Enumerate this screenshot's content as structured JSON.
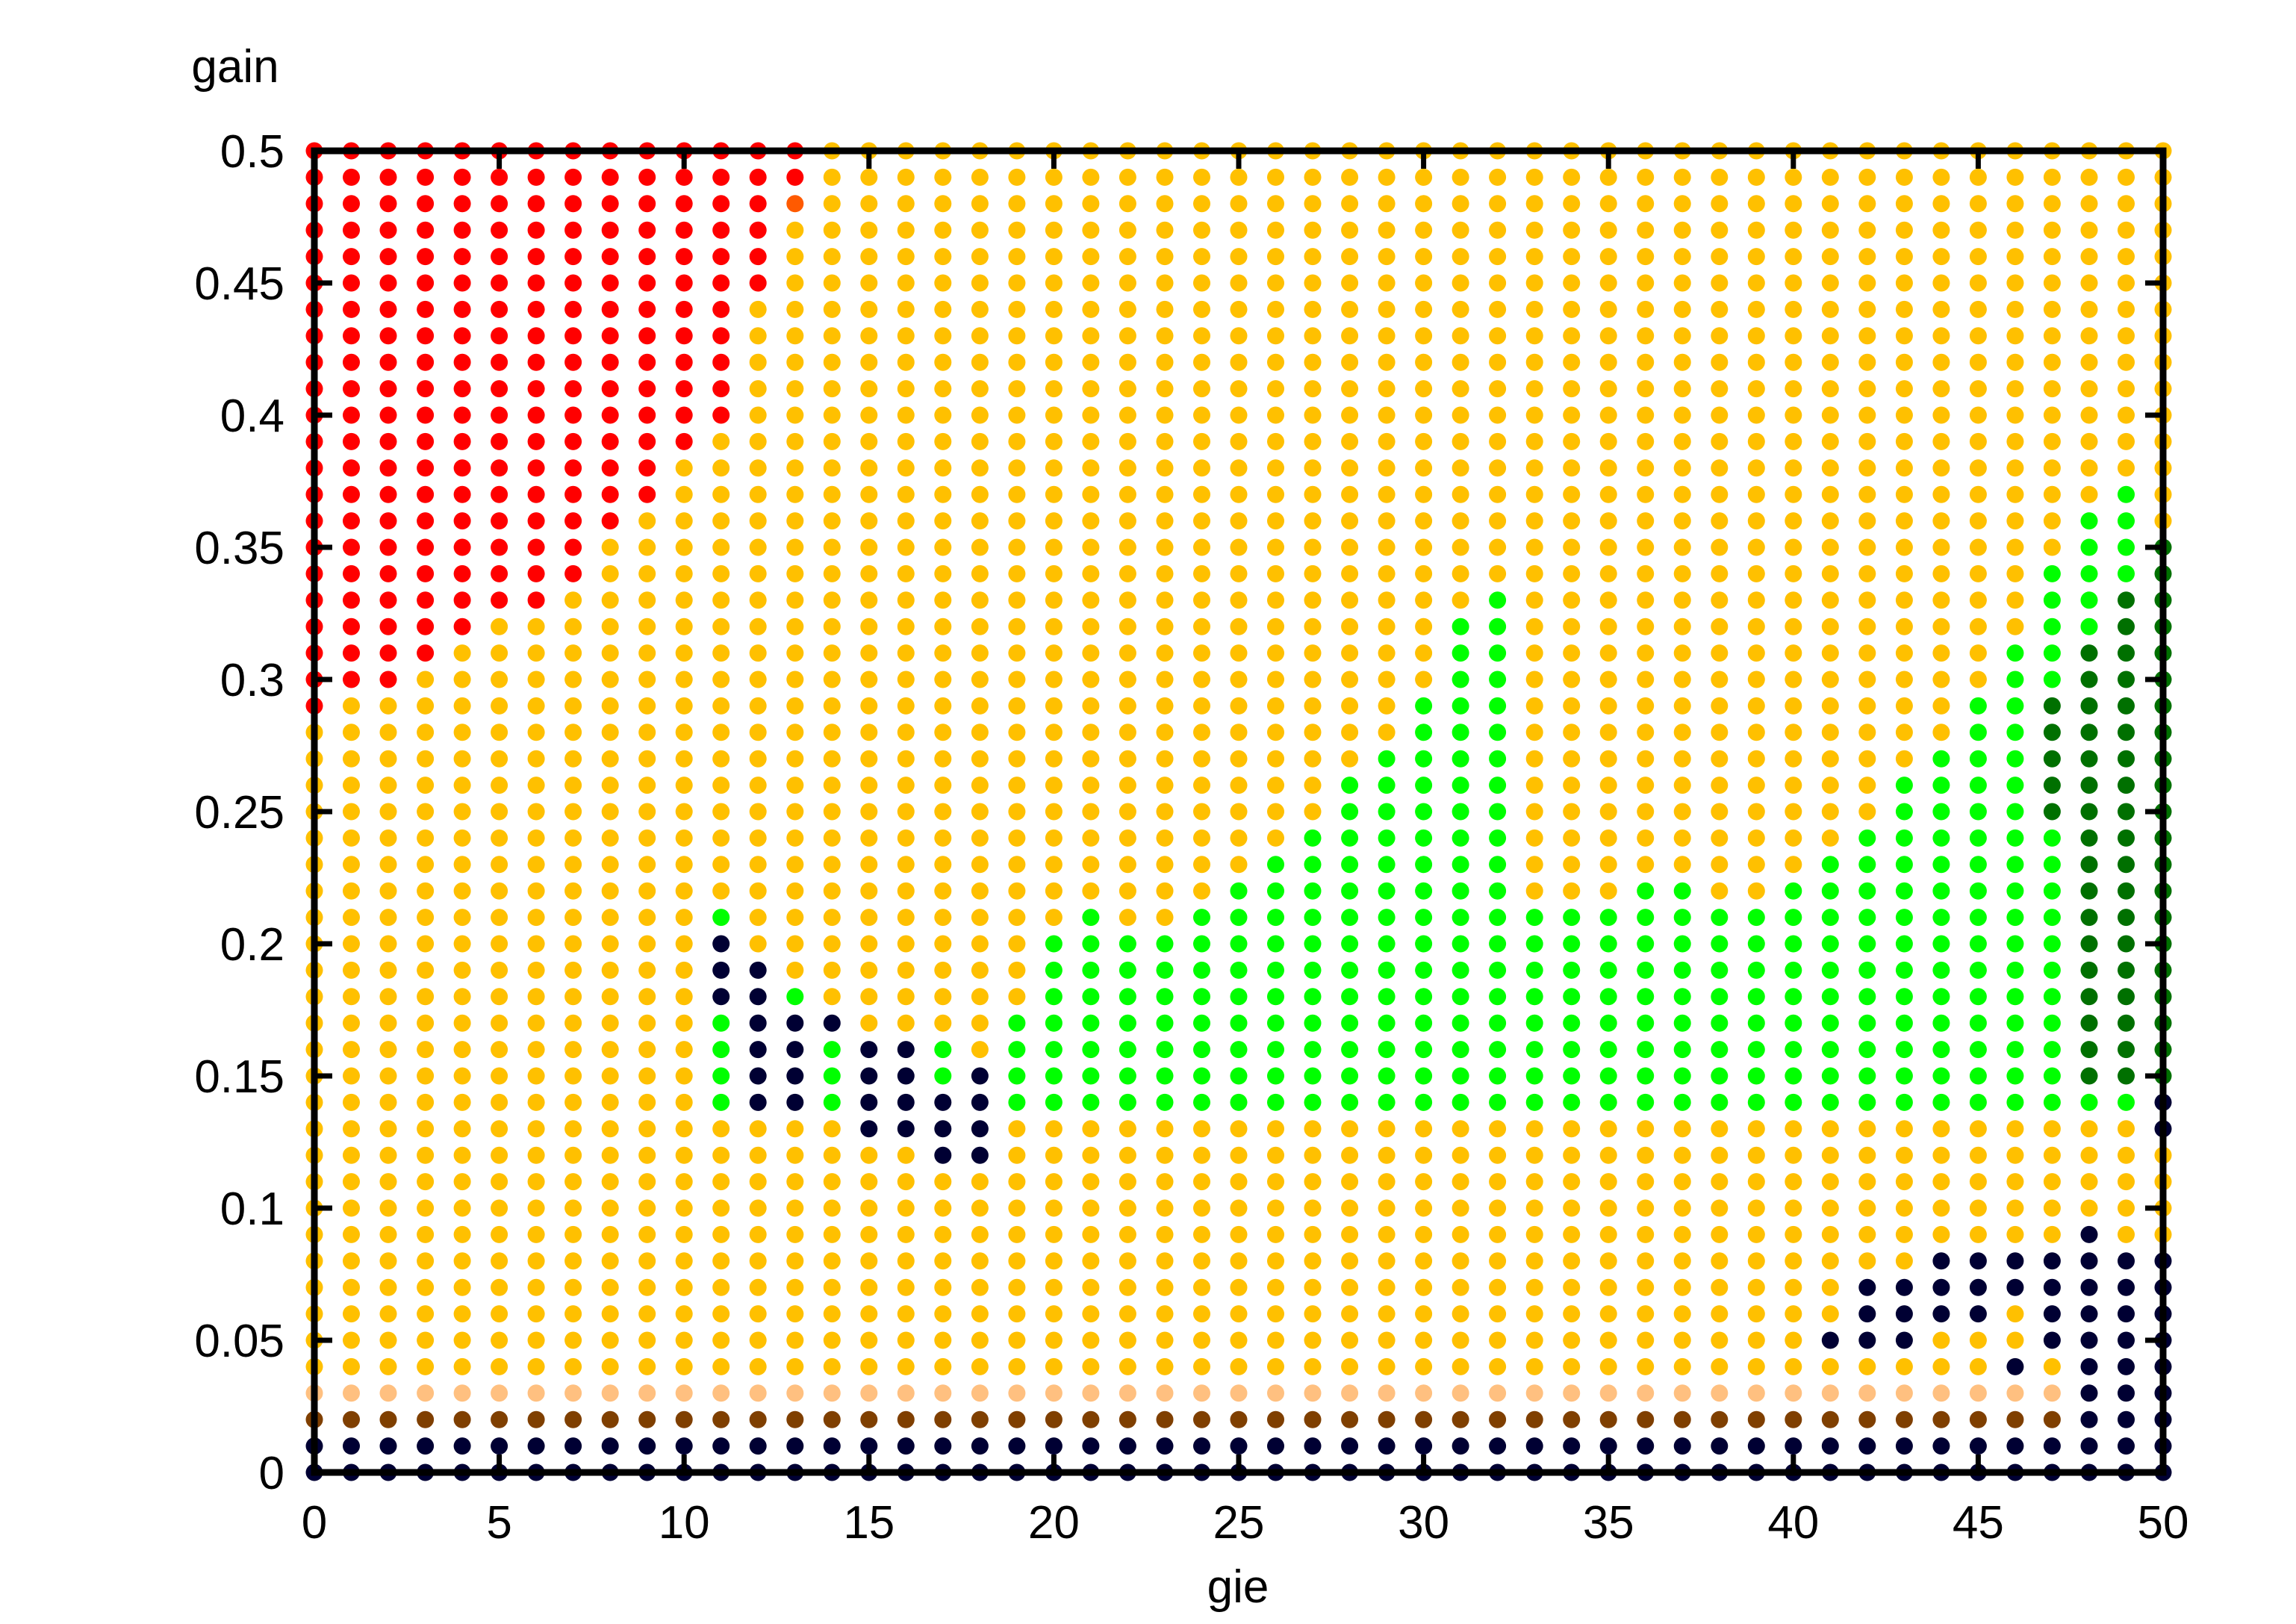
{
  "chart_data": {
    "type": "scatter",
    "title": "",
    "xlabel": "gie",
    "ylabel": "gain",
    "xlim": [
      0,
      50
    ],
    "ylim": [
      0,
      0.5
    ],
    "x_ticks": [
      "0",
      "5",
      "10",
      "15",
      "20",
      "25",
      "30",
      "35",
      "40",
      "45",
      "50"
    ],
    "y_ticks": [
      "0",
      "0.05",
      "0.1",
      "0.15",
      "0.2",
      "0.25",
      "0.3",
      "0.35",
      "0.4",
      "0.45",
      "0.5"
    ],
    "grid": false,
    "legend": "none",
    "x_step": 1,
    "y_step": 0.01,
    "default_color": "#ffc000",
    "colors": {
      "orange": "#ffc000",
      "red": "#ff0000",
      "dark_orange": "#ff5a00",
      "navy": "#000033",
      "brown": "#7f3f00",
      "peach": "#ffc080",
      "green": "#00ff00",
      "dark_green": "#007000"
    },
    "regions": [
      {
        "color": "#ff0000",
        "label": "red",
        "columns": [
          {
            "x": 0,
            "ymin": 0.29,
            "ymax": 0.5
          },
          {
            "x": 1,
            "ymin": 0.3,
            "ymax": 0.5
          },
          {
            "x": 2,
            "ymin": 0.3,
            "ymax": 0.5
          },
          {
            "x": 3,
            "ymin": 0.31,
            "ymax": 0.5
          },
          {
            "x": 4,
            "ymin": 0.32,
            "ymax": 0.5
          },
          {
            "x": 5,
            "ymin": 0.33,
            "ymax": 0.5
          },
          {
            "x": 6,
            "ymin": 0.33,
            "ymax": 0.5
          },
          {
            "x": 7,
            "ymin": 0.34,
            "ymax": 0.5
          },
          {
            "x": 8,
            "ymin": 0.36,
            "ymax": 0.5
          },
          {
            "x": 9,
            "ymin": 0.37,
            "ymax": 0.5
          },
          {
            "x": 10,
            "ymin": 0.39,
            "ymax": 0.5
          },
          {
            "x": 11,
            "ymin": 0.4,
            "ymax": 0.5
          },
          {
            "x": 12,
            "ymin": 0.45,
            "ymax": 0.5
          },
          {
            "x": 13,
            "ymin": 0.49,
            "ymax": 0.5
          }
        ]
      },
      {
        "color": "#ff5a00",
        "label": "dark-orange",
        "points": [
          [
            13,
            0.48
          ]
        ]
      },
      {
        "color": "#00ff00",
        "label": "green",
        "columns": [
          {
            "x": 11,
            "ymin": 0.14,
            "ymax": 0.21
          },
          {
            "x": 12,
            "ymin": 0.14,
            "ymax": 0.18
          },
          {
            "x": 13,
            "ymin": 0.14,
            "ymax": 0.18
          },
          {
            "x": 14,
            "ymin": 0.14,
            "ymax": 0.16
          },
          {
            "x": 17,
            "ymin": 0.15,
            "ymax": 0.16
          },
          {
            "x": 19,
            "ymin": 0.14,
            "ymax": 0.17
          },
          {
            "x": 20,
            "ymin": 0.14,
            "ymax": 0.2
          },
          {
            "x": 21,
            "ymin": 0.14,
            "ymax": 0.21
          },
          {
            "x": 22,
            "ymin": 0.14,
            "ymax": 0.2
          },
          {
            "x": 23,
            "ymin": 0.14,
            "ymax": 0.2
          },
          {
            "x": 24,
            "ymin": 0.14,
            "ymax": 0.21
          },
          {
            "x": 25,
            "ymin": 0.14,
            "ymax": 0.22
          },
          {
            "x": 26,
            "ymin": 0.14,
            "ymax": 0.23
          },
          {
            "x": 27,
            "ymin": 0.14,
            "ymax": 0.24
          },
          {
            "x": 28,
            "ymin": 0.14,
            "ymax": 0.26
          },
          {
            "x": 29,
            "ymin": 0.14,
            "ymax": 0.27
          },
          {
            "x": 30,
            "ymin": 0.14,
            "ymax": 0.29
          },
          {
            "x": 31,
            "ymin": 0.14,
            "ymax": 0.32
          },
          {
            "x": 32,
            "ymin": 0.14,
            "ymax": 0.33
          },
          {
            "x": 33,
            "ymin": 0.14,
            "ymax": 0.21
          },
          {
            "x": 34,
            "ymin": 0.14,
            "ymax": 0.21
          },
          {
            "x": 35,
            "ymin": 0.14,
            "ymax": 0.21
          },
          {
            "x": 36,
            "ymin": 0.14,
            "ymax": 0.22
          },
          {
            "x": 37,
            "ymin": 0.14,
            "ymax": 0.22
          },
          {
            "x": 38,
            "ymin": 0.14,
            "ymax": 0.21
          },
          {
            "x": 39,
            "ymin": 0.14,
            "ymax": 0.21
          },
          {
            "x": 40,
            "ymin": 0.14,
            "ymax": 0.22
          },
          {
            "x": 41,
            "ymin": 0.14,
            "ymax": 0.23
          },
          {
            "x": 42,
            "ymin": 0.14,
            "ymax": 0.24
          },
          {
            "x": 43,
            "ymin": 0.14,
            "ymax": 0.26
          },
          {
            "x": 44,
            "ymin": 0.14,
            "ymax": 0.27
          },
          {
            "x": 45,
            "ymin": 0.14,
            "ymax": 0.29
          },
          {
            "x": 46,
            "ymin": 0.14,
            "ymax": 0.31
          },
          {
            "x": 47,
            "ymin": 0.14,
            "ymax": 0.34
          },
          {
            "x": 48,
            "ymin": 0.14,
            "ymax": 0.36
          },
          {
            "x": 49,
            "ymin": 0.14,
            "ymax": 0.37
          }
        ]
      },
      {
        "color": "#007000",
        "label": "dark-green",
        "columns": [
          {
            "x": 47,
            "ymin": 0.25,
            "ymax": 0.29
          },
          {
            "x": 48,
            "ymin": 0.15,
            "ymax": 0.31
          },
          {
            "x": 49,
            "ymin": 0.15,
            "ymax": 0.33
          },
          {
            "x": 50,
            "ymin": 0.15,
            "ymax": 0.35
          }
        ]
      },
      {
        "color": "#000033",
        "label": "navy-cluster",
        "columns": [
          {
            "x": 11,
            "ymin": 0.18,
            "ymax": 0.2
          },
          {
            "x": 12,
            "ymin": 0.14,
            "ymax": 0.19
          },
          {
            "x": 13,
            "ymin": 0.14,
            "ymax": 0.17
          },
          {
            "x": 14,
            "ymin": 0.17,
            "ymax": 0.17
          },
          {
            "x": 15,
            "ymin": 0.13,
            "ymax": 0.16
          },
          {
            "x": 16,
            "ymin": 0.13,
            "ymax": 0.16
          },
          {
            "x": 17,
            "ymin": 0.12,
            "ymax": 0.14
          },
          {
            "x": 18,
            "ymin": 0.12,
            "ymax": 0.15
          },
          {
            "x": 50,
            "ymin": 0.13,
            "ymax": 0.14
          }
        ]
      },
      {
        "color": "#000033",
        "label": "navy-corner",
        "columns": [
          {
            "x": 41,
            "ymin": 0.05,
            "ymax": 0.05
          },
          {
            "x": 42,
            "ymin": 0.05,
            "ymax": 0.07
          },
          {
            "x": 43,
            "ymin": 0.05,
            "ymax": 0.07
          },
          {
            "x": 44,
            "ymin": 0.06,
            "ymax": 0.08
          },
          {
            "x": 45,
            "ymin": 0.06,
            "ymax": 0.08
          },
          {
            "x": 46,
            "ymin": 0.07,
            "ymax": 0.08
          },
          {
            "x": 47,
            "ymin": 0.05,
            "ymax": 0.08
          },
          {
            "x": 48,
            "ymin": 0.0,
            "ymax": 0.09
          },
          {
            "x": 49,
            "ymin": 0.0,
            "ymax": 0.08
          },
          {
            "x": 50,
            "ymin": 0.0,
            "ymax": 0.08
          }
        ]
      },
      {
        "color": "#000033",
        "label": "navy-single",
        "points": [
          [
            46,
            0.04
          ]
        ]
      },
      {
        "color": "#ffc000",
        "label": "orange-gaps",
        "points": [
          [
            46,
            0.05
          ],
          [
            46,
            0.06
          ]
        ]
      },
      {
        "color": "#000033",
        "label": "navy-bottom",
        "rows": [
          {
            "y": 0.0,
            "xmin": 0,
            "xmax": 50
          },
          {
            "y": 0.01,
            "xmin": 0,
            "xmax": 50
          }
        ]
      },
      {
        "color": "#7f3f00",
        "label": "brown-band",
        "rows": [
          {
            "y": 0.02,
            "xmin": 0,
            "xmax": 47
          }
        ]
      },
      {
        "color": "#ffc080",
        "label": "peach-band",
        "rows": [
          {
            "y": 0.03,
            "xmin": 0,
            "xmax": 47
          }
        ]
      }
    ]
  }
}
